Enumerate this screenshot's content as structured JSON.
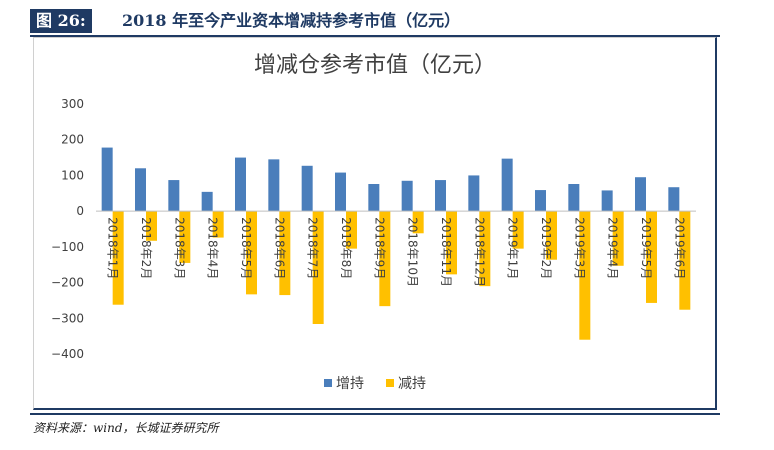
{
  "figure": {
    "label": "图 26:",
    "title": "2018 年至今产业资本增减持参考市值（亿元）",
    "source": "资料来源：wind，长城证券研究所"
  },
  "colors": {
    "accent": "#1f3a63",
    "increase": "#4a7ebb",
    "decrease": "#ffc000"
  },
  "chart_data": {
    "type": "bar",
    "title": "增减仓参考市值（亿元）",
    "xlabel": "",
    "ylabel": "",
    "ylim": [
      -400,
      300
    ],
    "yticks": [
      300,
      200,
      100,
      0,
      -100,
      -200,
      -300,
      -400
    ],
    "ytick_labels": [
      "300",
      "200",
      "100",
      "0",
      "−100",
      "−200",
      "−300",
      "−400"
    ],
    "categories": [
      "2018年1月",
      "2018年2月",
      "2018年3月",
      "2018年4月",
      "2018年5月",
      "2018年6月",
      "2018年7月",
      "2018年8月",
      "2018年9月",
      "2018年10月",
      "2018年11月",
      "2018年12月",
      "2019年1月",
      "2019年2月",
      "2019年3月",
      "2019年4月",
      "2019年5月",
      "2019年6月"
    ],
    "series": [
      {
        "name": "增持",
        "values": [
          178,
          120,
          87,
          54,
          150,
          145,
          127,
          108,
          76,
          85,
          87,
          100,
          147,
          59,
          76,
          58,
          95,
          67
        ]
      },
      {
        "name": "减持",
        "values": [
          -262,
          -83,
          -145,
          -74,
          -233,
          -235,
          -316,
          -105,
          -266,
          -62,
          -177,
          -210,
          -105,
          -136,
          -360,
          -153,
          -257,
          -276
        ]
      }
    ],
    "legend_position": "bottom",
    "grid": false
  }
}
